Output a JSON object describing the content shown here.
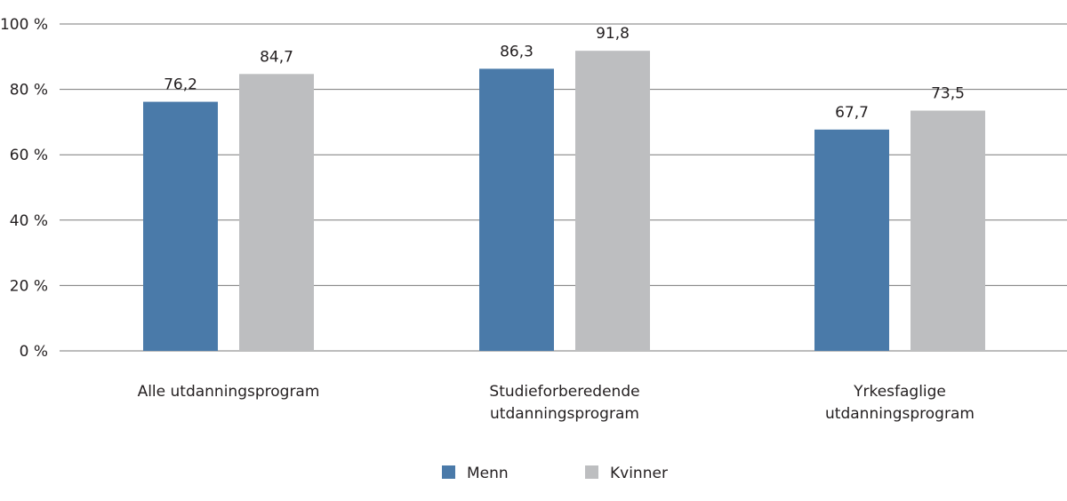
{
  "chart_data": {
    "type": "bar",
    "title": "",
    "xlabel": "",
    "ylabel": "",
    "ylim": [
      0,
      100
    ],
    "yticks": [
      0,
      20,
      40,
      60,
      80,
      100
    ],
    "ytick_labels": [
      "0 %",
      "20 %",
      "40 %",
      "60 %",
      "80 %",
      "100 %"
    ],
    "grid": true,
    "legend_position": "bottom",
    "categories": [
      [
        "Alle utdanningsprogram"
      ],
      [
        "Studieforberedende",
        "utdanningsprogram"
      ],
      [
        "Yrkesfaglige",
        "utdanningsprogram"
      ]
    ],
    "series": [
      {
        "name": "Menn",
        "color": "#4a7aa9",
        "values": [
          76.2,
          86.3,
          67.7
        ],
        "labels": [
          "76,2",
          "86,3",
          "67,7"
        ]
      },
      {
        "name": "Kvinner",
        "color": "#bdbec0",
        "values": [
          84.7,
          91.8,
          73.5
        ],
        "labels": [
          "84,7",
          "91,8",
          "73,5"
        ]
      }
    ]
  }
}
